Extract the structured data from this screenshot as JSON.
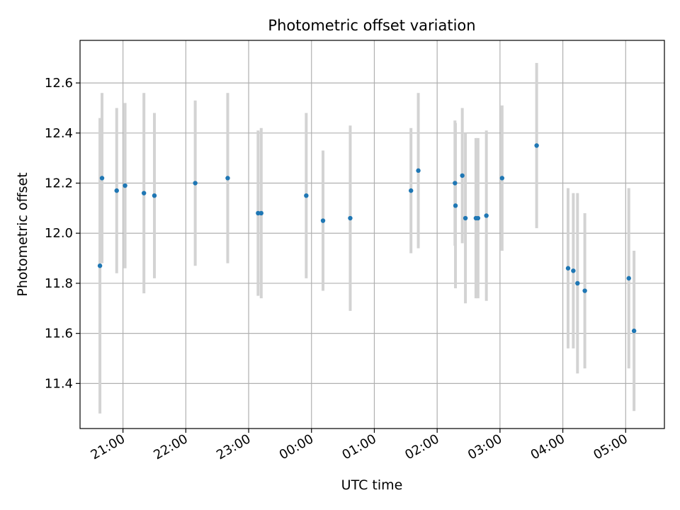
{
  "chart_data": {
    "type": "scatter",
    "title": "Photometric offset variation",
    "xlabel": "UTC time",
    "ylabel": "Photometric offset",
    "x_axis_kind": "time",
    "x_domain": [
      "2000-01-01T20:19:00",
      "2000-01-02T05:37:00"
    ],
    "ylim": [
      11.22,
      12.77
    ],
    "x_ticks": [
      {
        "t": "2000-01-01T21:00:00",
        "label": "21:00"
      },
      {
        "t": "2000-01-01T22:00:00",
        "label": "22:00"
      },
      {
        "t": "2000-01-01T23:00:00",
        "label": "23:00"
      },
      {
        "t": "2000-01-02T00:00:00",
        "label": "00:00"
      },
      {
        "t": "2000-01-02T01:00:00",
        "label": "01:00"
      },
      {
        "t": "2000-01-02T02:00:00",
        "label": "02:00"
      },
      {
        "t": "2000-01-02T03:00:00",
        "label": "03:00"
      },
      {
        "t": "2000-01-02T04:00:00",
        "label": "04:00"
      },
      {
        "t": "2000-01-02T05:00:00",
        "label": "05:00"
      }
    ],
    "y_ticks": [
      11.4,
      11.6,
      11.8,
      12.0,
      12.2,
      12.4,
      12.6
    ],
    "grid": true,
    "colors": {
      "points": "#1f77b4",
      "errorbars": "#d3d3d3",
      "grid": "#b0b0b0"
    },
    "points": [
      {
        "t": "2000-01-01T20:38:00",
        "y": 11.87,
        "err": 0.59
      },
      {
        "t": "2000-01-01T20:40:00",
        "y": 12.22,
        "err": 0.34
      },
      {
        "t": "2000-01-01T20:54:00",
        "y": 12.17,
        "err": 0.33
      },
      {
        "t": "2000-01-01T21:02:00",
        "y": 12.19,
        "err": 0.33
      },
      {
        "t": "2000-01-01T21:20:00",
        "y": 12.16,
        "err": 0.4
      },
      {
        "t": "2000-01-01T21:30:00",
        "y": 12.15,
        "err": 0.33
      },
      {
        "t": "2000-01-01T22:09:00",
        "y": 12.2,
        "err": 0.33
      },
      {
        "t": "2000-01-01T22:40:00",
        "y": 12.22,
        "err": 0.34
      },
      {
        "t": "2000-01-01T23:09:00",
        "y": 12.08,
        "err": 0.33
      },
      {
        "t": "2000-01-01T23:12:00",
        "y": 12.08,
        "err": 0.34
      },
      {
        "t": "2000-01-01T23:55:00",
        "y": 12.15,
        "err": 0.33
      },
      {
        "t": "2000-01-02T00:11:00",
        "y": 12.05,
        "err": 0.28
      },
      {
        "t": "2000-01-02T00:37:00",
        "y": 12.06,
        "err": 0.37
      },
      {
        "t": "2000-01-02T01:35:00",
        "y": 12.17,
        "err": 0.25
      },
      {
        "t": "2000-01-02T01:42:00",
        "y": 12.25,
        "err": 0.31
      },
      {
        "t": "2000-01-02T02:17:00",
        "y": 12.2,
        "err": 0.25
      },
      {
        "t": "2000-01-02T02:17:30",
        "y": 12.11,
        "err": 0.33
      },
      {
        "t": "2000-01-02T02:24:00",
        "y": 12.23,
        "err": 0.27
      },
      {
        "t": "2000-01-02T02:27:00",
        "y": 12.06,
        "err": 0.34
      },
      {
        "t": "2000-01-02T02:37:00",
        "y": 12.06,
        "err": 0.32
      },
      {
        "t": "2000-01-02T02:39:00",
        "y": 12.06,
        "err": 0.32
      },
      {
        "t": "2000-01-02T02:47:00",
        "y": 12.07,
        "err": 0.34
      },
      {
        "t": "2000-01-02T03:02:00",
        "y": 12.22,
        "err": 0.29
      },
      {
        "t": "2000-01-02T03:35:00",
        "y": 12.35,
        "err": 0.33
      },
      {
        "t": "2000-01-02T04:05:00",
        "y": 11.86,
        "err": 0.32
      },
      {
        "t": "2000-01-02T04:10:00",
        "y": 11.85,
        "err": 0.31
      },
      {
        "t": "2000-01-02T04:14:00",
        "y": 11.8,
        "err": 0.36
      },
      {
        "t": "2000-01-02T04:21:00",
        "y": 11.77,
        "err": 0.31
      },
      {
        "t": "2000-01-02T05:03:00",
        "y": 11.82,
        "err": 0.36
      },
      {
        "t": "2000-01-02T05:08:00",
        "y": 11.61,
        "err": 0.32
      }
    ]
  }
}
